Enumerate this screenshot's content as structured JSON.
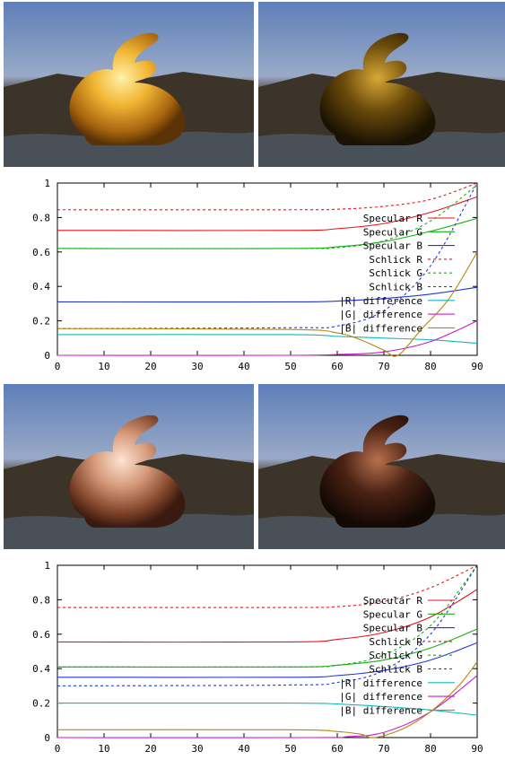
{
  "colors": {
    "specular_r": "#e8141c",
    "specular_g": "#16b016",
    "specular_b": "#2236d8",
    "diff_r": "#12b8c0",
    "diff_g": "#c81ec8",
    "diff_b": "#b8860b",
    "gold": "#d79a1e",
    "copper": "#c58a6a"
  },
  "renders": [
    {
      "material": "gold",
      "view": "rendered",
      "icon": "bunny-gold-reflective"
    },
    {
      "material": "gold",
      "view": "dark",
      "icon": "bunny-gold-dark"
    },
    {
      "material": "copper",
      "view": "rendered",
      "icon": "bunny-copper-reflective"
    },
    {
      "material": "copper",
      "view": "dark",
      "icon": "bunny-copper-dark"
    }
  ],
  "chart_data": [
    {
      "type": "line",
      "xlim": [
        0,
        90
      ],
      "ylim": [
        0,
        1
      ],
      "xticks": [
        "0",
        "10",
        "20",
        "30",
        "40",
        "50",
        "60",
        "70",
        "80",
        "90"
      ],
      "yticks": [
        "0",
        "0.2",
        "0.4",
        "0.6",
        "0.8",
        "1"
      ],
      "legend_position": "right",
      "series": [
        {
          "name": "Specular R",
          "style": "solid",
          "color_key": "specular_r",
          "points": [
            [
              0,
              0.725
            ],
            [
              50,
              0.725
            ],
            [
              60,
              0.735
            ],
            [
              70,
              0.765
            ],
            [
              80,
              0.83
            ],
            [
              90,
              0.92
            ]
          ]
        },
        {
          "name": "Specular G",
          "style": "solid",
          "color_key": "specular_g",
          "points": [
            [
              0,
              0.62
            ],
            [
              50,
              0.62
            ],
            [
              60,
              0.63
            ],
            [
              70,
              0.66
            ],
            [
              80,
              0.72
            ],
            [
              90,
              0.795
            ]
          ]
        },
        {
          "name": "Specular B",
          "style": "solid",
          "color_key": "specular_b",
          "points": [
            [
              0,
              0.31
            ],
            [
              50,
              0.31
            ],
            [
              60,
              0.315
            ],
            [
              70,
              0.33
            ],
            [
              80,
              0.355
            ],
            [
              90,
              0.395
            ]
          ]
        },
        {
          "name": "Schlick R",
          "style": "dashed",
          "color_key": "specular_r",
          "points": [
            [
              0,
              0.845
            ],
            [
              50,
              0.845
            ],
            [
              60,
              0.848
            ],
            [
              70,
              0.865
            ],
            [
              80,
              0.905
            ],
            [
              90,
              1.0
            ]
          ]
        },
        {
          "name": "Schlick G",
          "style": "dashed",
          "color_key": "specular_g",
          "points": [
            [
              0,
              0.62
            ],
            [
              50,
              0.62
            ],
            [
              60,
              0.625
            ],
            [
              70,
              0.665
            ],
            [
              80,
              0.78
            ],
            [
              90,
              0.99
            ]
          ]
        },
        {
          "name": "Schlick B",
          "style": "dashed",
          "color_key": "specular_b",
          "points": [
            [
              0,
              0.155
            ],
            [
              50,
              0.16
            ],
            [
              60,
              0.17
            ],
            [
              70,
              0.26
            ],
            [
              80,
              0.52
            ],
            [
              90,
              1.0
            ]
          ]
        },
        {
          "name": "|R| difference",
          "style": "solid",
          "color_key": "diff_r",
          "points": [
            [
              0,
              0.12
            ],
            [
              50,
              0.12
            ],
            [
              60,
              0.11
            ],
            [
              70,
              0.1
            ],
            [
              80,
              0.09
            ],
            [
              90,
              0.07
            ]
          ]
        },
        {
          "name": "|G| difference",
          "style": "solid",
          "color_key": "diff_g",
          "points": [
            [
              0,
              0.0
            ],
            [
              50,
              0.0
            ],
            [
              60,
              0.005
            ],
            [
              70,
              0.02
            ],
            [
              80,
              0.08
            ],
            [
              90,
              0.2
            ]
          ]
        },
        {
          "name": "|B| difference",
          "style": "solid",
          "color_key": "diff_b",
          "points": [
            [
              0,
              0.155
            ],
            [
              50,
              0.15
            ],
            [
              60,
              0.13
            ],
            [
              65,
              0.09
            ],
            [
              70,
              0.03
            ],
            [
              73,
              0.0
            ],
            [
              78,
              0.15
            ],
            [
              84,
              0.33
            ],
            [
              90,
              0.6
            ]
          ]
        }
      ]
    },
    {
      "type": "line",
      "xlim": [
        0,
        90
      ],
      "ylim": [
        0,
        1
      ],
      "xticks": [
        "0",
        "10",
        "20",
        "30",
        "40",
        "50",
        "60",
        "70",
        "80",
        "90"
      ],
      "yticks": [
        "0",
        "0.2",
        "0.4",
        "0.6",
        "0.8",
        "1"
      ],
      "legend_position": "right",
      "series": [
        {
          "name": "Specular R",
          "style": "solid",
          "color_key": "specular_r",
          "points": [
            [
              0,
              0.555
            ],
            [
              50,
              0.555
            ],
            [
              60,
              0.57
            ],
            [
              70,
              0.61
            ],
            [
              80,
              0.7
            ],
            [
              90,
              0.86
            ]
          ]
        },
        {
          "name": "Specular G",
          "style": "solid",
          "color_key": "specular_g",
          "points": [
            [
              0,
              0.41
            ],
            [
              50,
              0.41
            ],
            [
              60,
              0.42
            ],
            [
              70,
              0.45
            ],
            [
              80,
              0.52
            ],
            [
              90,
              0.63
            ]
          ]
        },
        {
          "name": "Specular B",
          "style": "solid",
          "color_key": "specular_b",
          "points": [
            [
              0,
              0.35
            ],
            [
              50,
              0.35
            ],
            [
              60,
              0.36
            ],
            [
              70,
              0.39
            ],
            [
              80,
              0.45
            ],
            [
              90,
              0.55
            ]
          ]
        },
        {
          "name": "Schlick R",
          "style": "dashed",
          "color_key": "specular_r",
          "points": [
            [
              0,
              0.755
            ],
            [
              50,
              0.755
            ],
            [
              60,
              0.76
            ],
            [
              70,
              0.79
            ],
            [
              80,
              0.87
            ],
            [
              90,
              1.0
            ]
          ]
        },
        {
          "name": "Schlick G",
          "style": "dashed",
          "color_key": "specular_g",
          "points": [
            [
              0,
              0.41
            ],
            [
              50,
              0.41
            ],
            [
              60,
              0.42
            ],
            [
              70,
              0.48
            ],
            [
              80,
              0.65
            ],
            [
              90,
              1.0
            ]
          ]
        },
        {
          "name": "Schlick B",
          "style": "dashed",
          "color_key": "specular_b",
          "points": [
            [
              0,
              0.3
            ],
            [
              50,
              0.305
            ],
            [
              60,
              0.32
            ],
            [
              70,
              0.39
            ],
            [
              80,
              0.6
            ],
            [
              90,
              1.0
            ]
          ]
        },
        {
          "name": "|R| difference",
          "style": "solid",
          "color_key": "diff_r",
          "points": [
            [
              0,
              0.2
            ],
            [
              50,
              0.2
            ],
            [
              60,
              0.195
            ],
            [
              70,
              0.18
            ],
            [
              80,
              0.16
            ],
            [
              90,
              0.13
            ]
          ]
        },
        {
          "name": "|G| difference",
          "style": "solid",
          "color_key": "diff_g",
          "points": [
            [
              0,
              0.0
            ],
            [
              55,
              0.0
            ],
            [
              62,
              0.005
            ],
            [
              70,
              0.03
            ],
            [
              80,
              0.15
            ],
            [
              90,
              0.36
            ]
          ]
        },
        {
          "name": "|B| difference",
          "style": "solid",
          "color_key": "diff_b",
          "points": [
            [
              0,
              0.045
            ],
            [
              50,
              0.045
            ],
            [
              60,
              0.035
            ],
            [
              65,
              0.02
            ],
            [
              68,
              0.0
            ],
            [
              74,
              0.05
            ],
            [
              80,
              0.15
            ],
            [
              86,
              0.3
            ],
            [
              90,
              0.44
            ]
          ]
        }
      ]
    }
  ]
}
